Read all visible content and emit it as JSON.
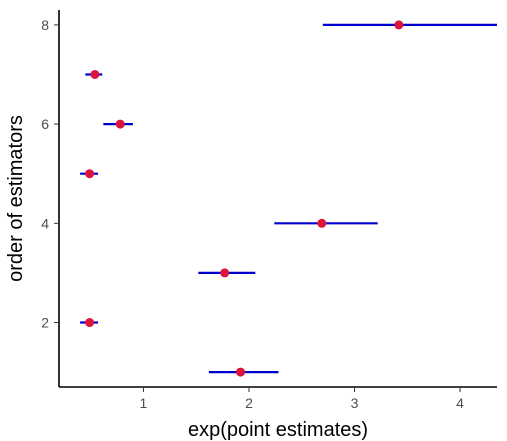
{
  "chart_data": {
    "type": "scatter",
    "title": "",
    "xlabel": "exp(point estimates)",
    "ylabel": "order of estimators",
    "xlim": [
      0.2,
      4.35
    ],
    "ylim": [
      0.7,
      8.3
    ],
    "x_ticks": [
      1,
      2,
      3,
      4
    ],
    "y_ticks": [
      2,
      4,
      6,
      8
    ],
    "grid": false,
    "legend": "none",
    "colors": {
      "point": "#dc143c",
      "interval": "#0000cd",
      "axis": "#000000",
      "tick_text": "#4d4d4d"
    },
    "series": [
      {
        "points": [
          {
            "y": 1,
            "x": 1.92,
            "low": 1.62,
            "high": 2.28
          },
          {
            "y": 2,
            "x": 0.49,
            "low": 0.4,
            "high": 0.57
          },
          {
            "y": 3,
            "x": 1.77,
            "low": 1.52,
            "high": 2.06
          },
          {
            "y": 4,
            "x": 2.69,
            "low": 2.24,
            "high": 3.22
          },
          {
            "y": 5,
            "x": 0.49,
            "low": 0.4,
            "high": 0.57
          },
          {
            "y": 6,
            "x": 0.78,
            "low": 0.62,
            "high": 0.9
          },
          {
            "y": 7,
            "x": 0.54,
            "low": 0.45,
            "high": 0.61
          },
          {
            "y": 8,
            "x": 3.42,
            "low": 2.7,
            "high": 4.35
          }
        ]
      }
    ]
  }
}
